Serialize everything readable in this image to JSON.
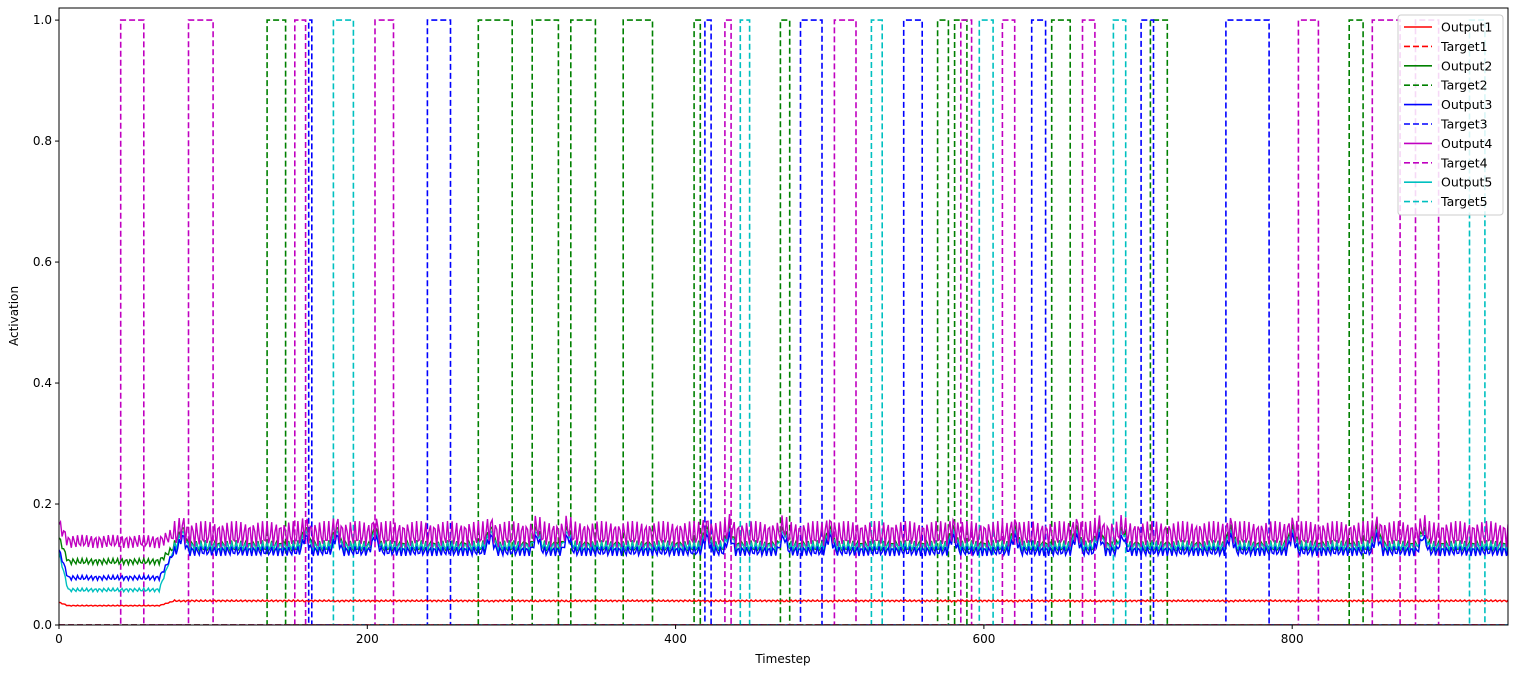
{
  "chart_data": {
    "type": "line",
    "title": "",
    "xlabel": "Timestep",
    "ylabel": "Activation",
    "xlim": [
      0,
      940
    ],
    "ylim": [
      0,
      1.02
    ],
    "xticks": [
      0,
      200,
      400,
      600,
      800
    ],
    "yticks": [
      0.0,
      0.2,
      0.4,
      0.6,
      0.8,
      1.0
    ],
    "ytick_labels": [
      "0.0",
      "0.2",
      "0.4",
      "0.6",
      "0.8",
      "1.0"
    ],
    "grid": false,
    "legend_position": "top-right",
    "targets": [
      {
        "name": "Target1",
        "color": "#ff0000",
        "on_intervals": []
      },
      {
        "name": "Target2",
        "color": "#008000",
        "on_intervals": [
          [
            135,
            147
          ],
          [
            272,
            294
          ],
          [
            307,
            324
          ],
          [
            332,
            348
          ],
          [
            366,
            385
          ],
          [
            412,
            416
          ],
          [
            468,
            474
          ],
          [
            570,
            577
          ],
          [
            581,
            589
          ],
          [
            644,
            656
          ],
          [
            708,
            719
          ],
          [
            837,
            846
          ]
        ]
      },
      {
        "name": "Target3",
        "color": "#0000ff",
        "on_intervals": [
          [
            162,
            164
          ],
          [
            239,
            254
          ],
          [
            419,
            423
          ],
          [
            481,
            495
          ],
          [
            548,
            560
          ],
          [
            631,
            640
          ],
          [
            702,
            710
          ],
          [
            757,
            785
          ]
        ]
      },
      {
        "name": "Target4",
        "color": "#c000c0",
        "on_intervals": [
          [
            40,
            55
          ],
          [
            84,
            100
          ],
          [
            153,
            160
          ],
          [
            205,
            217
          ],
          [
            432,
            436
          ],
          [
            503,
            517
          ],
          [
            585,
            592
          ],
          [
            612,
            620
          ],
          [
            664,
            672
          ],
          [
            804,
            817
          ],
          [
            852,
            870
          ],
          [
            880,
            895
          ]
        ]
      },
      {
        "name": "Target5",
        "color": "#00c0c0",
        "on_intervals": [
          [
            178,
            191
          ],
          [
            442,
            448
          ],
          [
            527,
            534
          ],
          [
            597,
            606
          ],
          [
            684,
            692
          ],
          [
            915,
            925
          ]
        ]
      }
    ],
    "outputs": [
      {
        "name": "Output1",
        "color": "#ff0000",
        "initial": 0.032,
        "steady": 0.04,
        "oscillation_amplitude": 0.0015,
        "bump_peak": 0.041
      },
      {
        "name": "Output2",
        "color": "#008000",
        "initial": 0.105,
        "steady": 0.13,
        "oscillation_amplitude": 0.01,
        "bump_peak": 0.17
      },
      {
        "name": "Output3",
        "color": "#0000ff",
        "initial": 0.078,
        "steady": 0.122,
        "oscillation_amplitude": 0.008,
        "bump_peak": 0.155
      },
      {
        "name": "Output4",
        "color": "#c000c0",
        "initial": 0.138,
        "steady": 0.15,
        "oscillation_amplitude": 0.022,
        "bump_peak": 0.185
      },
      {
        "name": "Output5",
        "color": "#00c0c0",
        "initial": 0.058,
        "steady": 0.13,
        "oscillation_amplitude": 0.006,
        "bump_peak": 0.16
      }
    ],
    "bump_timesteps": [
      80,
      160,
      180,
      205,
      280,
      310,
      330,
      420,
      435,
      470,
      500,
      580,
      620,
      660,
      675,
      690,
      760,
      800,
      855,
      885
    ],
    "legend": [
      "Output1",
      "Target1",
      "Output2",
      "Target2",
      "Output3",
      "Target3",
      "Output4",
      "Target4",
      "Output5",
      "Target5"
    ]
  }
}
